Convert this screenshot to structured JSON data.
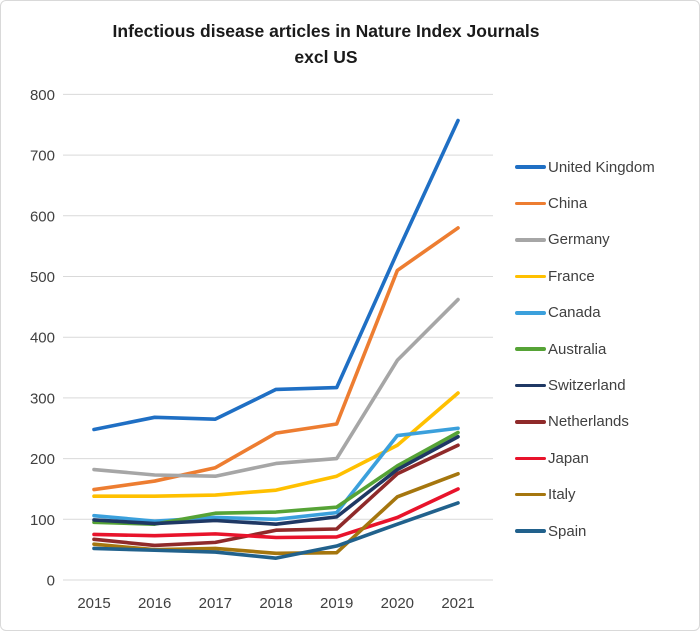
{
  "window": {
    "background": "#ffffff",
    "border_color": "#d9d9d9"
  },
  "title_lines": [
    "Infectious disease articles in Nature Index Journals",
    "excl US"
  ],
  "axis": {
    "tick_color": "#404040",
    "gridline_color": "#d9d9d9"
  },
  "chart_data": {
    "type": "line",
    "title": "Infectious disease articles in Nature Index Journals excl US",
    "xlabel": "",
    "ylabel": "",
    "x": [
      "2015",
      "2016",
      "2017",
      "2018",
      "2019",
      "2020",
      "2021"
    ],
    "ylim": [
      0,
      800
    ],
    "ytick_step": 100,
    "yticks": [
      0,
      100,
      200,
      300,
      400,
      500,
      600,
      700,
      800
    ],
    "grid": "horizontal",
    "legend_position": "right",
    "series": [
      {
        "name": "United Kingdom",
        "color": "#1f6fc4",
        "values": [
          248,
          268,
          265,
          314,
          317,
          540,
          757
        ]
      },
      {
        "name": "China",
        "color": "#ed7d31",
        "values": [
          149,
          163,
          185,
          242,
          257,
          510,
          580
        ]
      },
      {
        "name": "Germany",
        "color": "#a6a6a6",
        "values": [
          182,
          173,
          171,
          192,
          200,
          362,
          462
        ]
      },
      {
        "name": "France",
        "color": "#ffc000",
        "values": [
          138,
          138,
          140,
          148,
          171,
          222,
          308
        ]
      },
      {
        "name": "Canada",
        "color": "#3ba0dc",
        "values": [
          106,
          97,
          103,
          100,
          111,
          238,
          250
        ]
      },
      {
        "name": "Australia",
        "color": "#56a336",
        "values": [
          95,
          92,
          110,
          112,
          120,
          188,
          243
        ]
      },
      {
        "name": "Switzerland",
        "color": "#1f3864",
        "values": [
          99,
          93,
          98,
          92,
          104,
          182,
          236
        ]
      },
      {
        "name": "Netherlands",
        "color": "#8f2a2a",
        "values": [
          67,
          57,
          62,
          82,
          84,
          175,
          222
        ]
      },
      {
        "name": "Japan",
        "color": "#e8132b",
        "values": [
          75,
          73,
          76,
          70,
          71,
          103,
          150
        ]
      },
      {
        "name": "Italy",
        "color": "#a5760e",
        "values": [
          59,
          50,
          52,
          44,
          45,
          137,
          175
        ]
      },
      {
        "name": "Spain",
        "color": "#21618c",
        "values": [
          52,
          49,
          46,
          36,
          56,
          92,
          127
        ]
      }
    ]
  }
}
